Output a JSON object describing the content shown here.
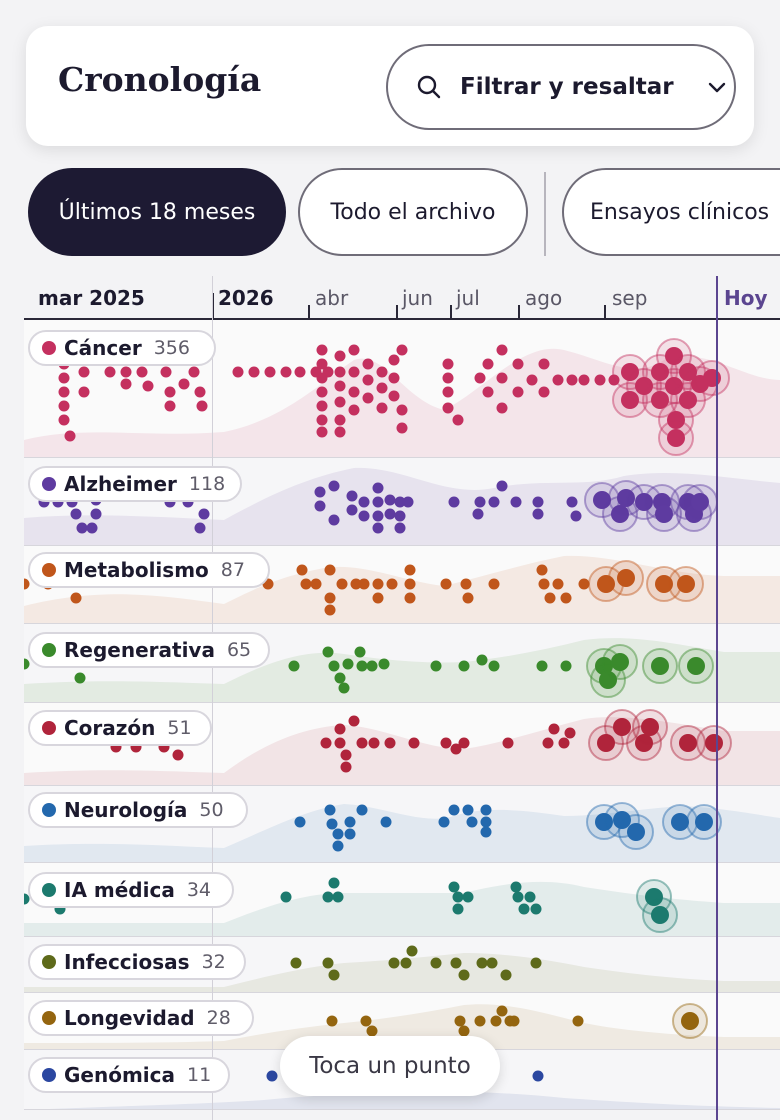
{
  "header": {
    "title": "Cronología",
    "filter_label": "Filtrar y resaltar"
  },
  "tabs": [
    {
      "label": "Últimos 18 meses",
      "active": true
    },
    {
      "label": "Todo el archivo",
      "active": false
    },
    {
      "label": "Ensayos clínicos",
      "active": false
    }
  ],
  "axis": {
    "labels": [
      "mar 2025",
      "2026",
      "abr",
      "jun",
      "jul",
      "ago",
      "sep",
      "Hoy"
    ]
  },
  "categories": [
    {
      "name": "Cáncer",
      "count": "356",
      "color": "#c4305f"
    },
    {
      "name": "Alzheimer",
      "count": "118",
      "color": "#5e3ba0"
    },
    {
      "name": "Metabolismo",
      "count": "87",
      "color": "#c0561b"
    },
    {
      "name": "Regenerativa",
      "count": "65",
      "color": "#3a8a2c"
    },
    {
      "name": "Corazón",
      "count": "51",
      "color": "#b0243b"
    },
    {
      "name": "Neurología",
      "count": "50",
      "color": "#2368ad"
    },
    {
      "name": "IA médica",
      "count": "34",
      "color": "#1c7a6e"
    },
    {
      "name": "Infecciosas",
      "count": "32",
      "color": "#5e6a1a"
    },
    {
      "name": "Longevidad",
      "count": "28",
      "color": "#94650f"
    },
    {
      "name": "Genómica",
      "count": "11",
      "color": "#2b47a0"
    }
  ],
  "toast": "Toca un punto"
}
